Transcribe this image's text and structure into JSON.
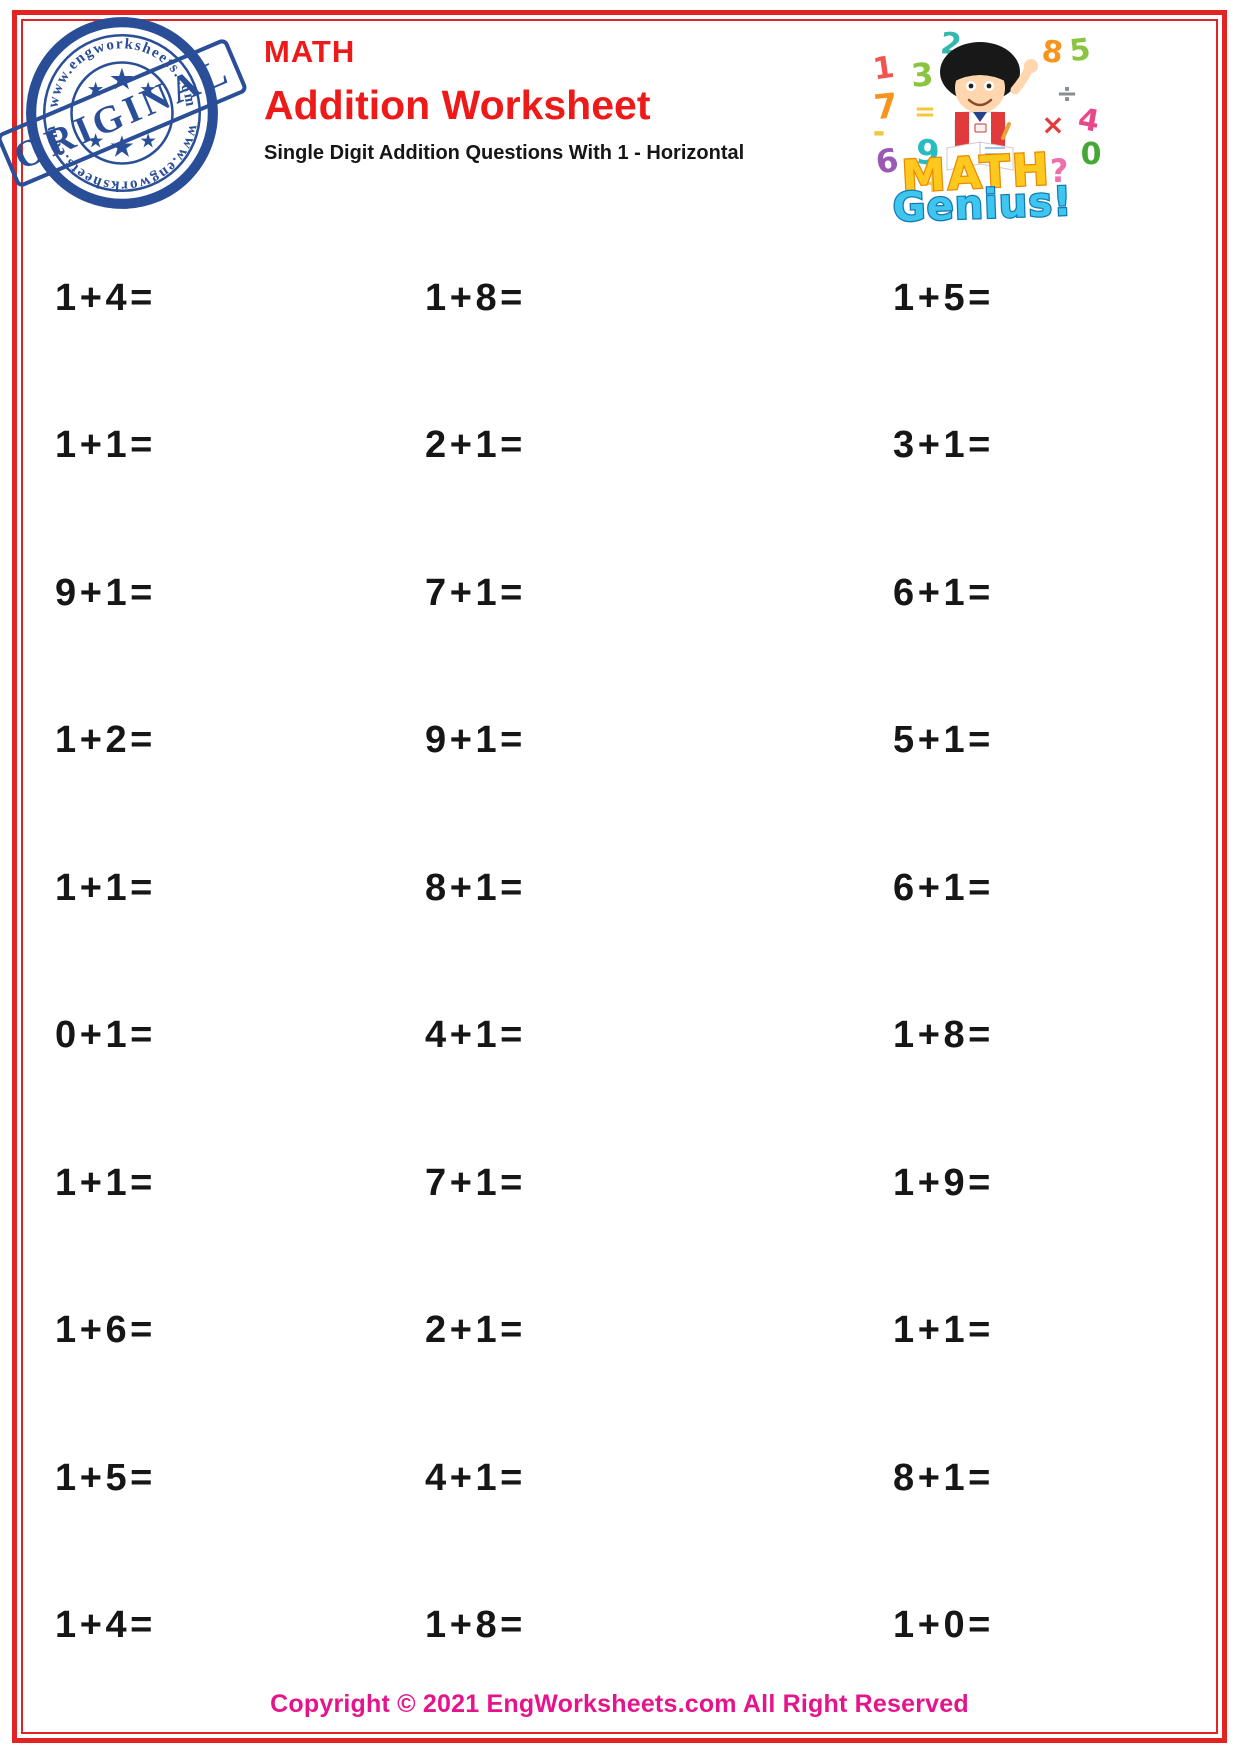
{
  "stamp": {
    "banner": "ORIGINAL",
    "arc_text_top": "www.engworksheets.com",
    "arc_text_bottom": "www.engworksheets.com"
  },
  "header": {
    "title": "MATH",
    "subtitle": "Addition Worksheet",
    "description": "Single Digit Addition Questions With 1 - Horizontal"
  },
  "logo": {
    "word1": "MATH",
    "word2": "Genius!",
    "glyphs": [
      {
        "ch": "1",
        "color": "#f0564f"
      },
      {
        "ch": "2",
        "color": "#35b8ac"
      },
      {
        "ch": "3",
        "color": "#8bc53f"
      },
      {
        "ch": "7",
        "color": "#f7941d"
      },
      {
        "ch": "=",
        "color": "#f5c53a"
      },
      {
        "ch": "-",
        "color": "#f5c53a"
      },
      {
        "ch": "6",
        "color": "#9b59b6"
      },
      {
        "ch": "9",
        "color": "#27bdbe"
      },
      {
        "ch": "+",
        "color": "#f5c53a"
      },
      {
        "ch": "8",
        "color": "#f7941d"
      },
      {
        "ch": "5",
        "color": "#8bc53f"
      },
      {
        "ch": "÷",
        "color": "#8a8d90"
      },
      {
        "ch": "4",
        "color": "#e8488a"
      },
      {
        "ch": "×",
        "color": "#e23b3b"
      },
      {
        "ch": "?",
        "color": "#f06eaa"
      },
      {
        "ch": "0",
        "color": "#45a735"
      }
    ]
  },
  "problems": {
    "columns": 3,
    "rows": [
      [
        "1 + 4 =",
        "1 + 8 =",
        "1 + 5 ="
      ],
      [
        "1 + 1 =",
        "2 + 1 =",
        "3 + 1 ="
      ],
      [
        "9 + 1 =",
        "7 + 1 =",
        "6 + 1 ="
      ],
      [
        "1 + 2 =",
        "9 + 1 =",
        "5 + 1 ="
      ],
      [
        "1 + 1 =",
        "8 + 1 =",
        "6 + 1 ="
      ],
      [
        "0 + 1 =",
        "4 + 1 =",
        "1 + 8 ="
      ],
      [
        "1 + 1 =",
        "7 + 1 =",
        "1 + 9 ="
      ],
      [
        "1 + 6 =",
        "2 + 1 =",
        "1 + 1 ="
      ],
      [
        "1 + 5 =",
        "4 + 1 =",
        "8 + 1 ="
      ],
      [
        "1 + 4 =",
        "1 + 8 =",
        "1 + 0 ="
      ]
    ]
  },
  "footer": {
    "copyright": "Copyright © 2021 EngWorksheets.com All Right Reserved"
  },
  "colors": {
    "border_red": "#e32222",
    "title_red": "#ee1a1a",
    "text_black": "#161616",
    "footer_pink": "#e6148c",
    "stamp_blue": "#2a4e97",
    "logo_yellow": "#ffc81e",
    "logo_blue": "#3ec6ef"
  }
}
